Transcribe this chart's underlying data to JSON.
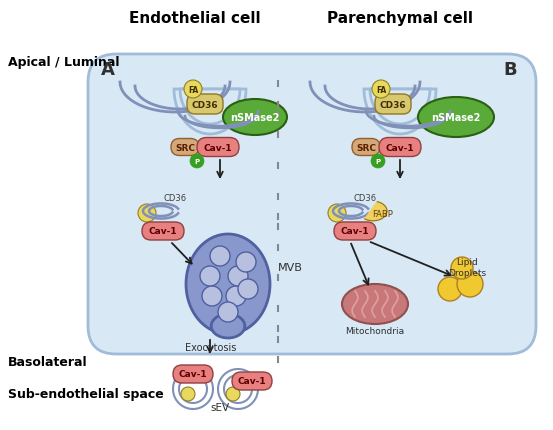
{
  "bg_color": "#ffffff",
  "cell_bg": "#d8e8f5",
  "cell_border": "#a0bcd8",
  "title_endothelial": "Endothelial cell",
  "title_parenchymal": "Parenchymal cell",
  "label_apical": "Apical / Luminal",
  "label_basolateral": "Basolateral",
  "label_subendothelial": "Sub-endothelial space",
  "label_A": "A",
  "label_B": "B",
  "label_MVB": "MVB",
  "label_Exocytosis": "Exocytosis",
  "label_sEV": "sEV",
  "label_Mitochondria": "Mitochondria",
  "label_LipidDroplets": "Lipid\nDroplets",
  "label_FABP": "FABP",
  "color_nsmase_fill": "#5aaa3a",
  "color_nsmase_edge": "#2a6010",
  "color_cd36_fill": "#d8c870",
  "color_cd36_edge": "#907820",
  "color_fa_fill": "#e8d860",
  "color_fa_edge": "#908020",
  "color_cav1_fill": "#e88080",
  "color_cav1_edge": "#904040",
  "color_src_fill": "#d4a878",
  "color_src_edge": "#906030",
  "color_phospho_fill": "#38a020",
  "color_mvb_fill": "#8898cc",
  "color_mvb_edge": "#5060a0",
  "color_mvb_inner": "#b8c0e0",
  "color_mito_fill": "#c87878",
  "color_mito_edge": "#905050",
  "color_mito_inner": "#e0a0a0",
  "color_lipid_fill": "#f0c830",
  "color_lipid_edge": "#b08020",
  "color_fabp_fill": "#f0d060",
  "color_fabp_edge": "#907020",
  "color_membrane": "#8090b8",
  "color_arrow": "#202020",
  "color_dashed": "#888888"
}
